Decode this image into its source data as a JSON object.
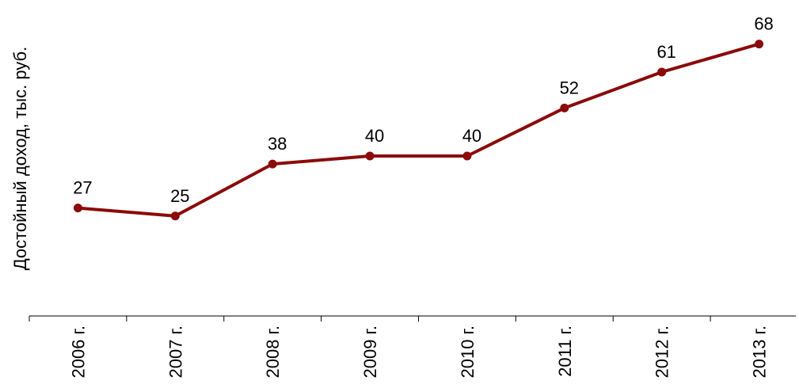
{
  "chart_data": {
    "type": "line",
    "title": "",
    "xlabel": "",
    "ylabel": "Достойный доход, тыс. руб.",
    "categories": [
      "2006 г.",
      "2007 г.",
      "2008 г.",
      "2009 г.",
      "2010 г.",
      "2011 г.",
      "2012 г.",
      "2013 г."
    ],
    "series": [
      {
        "values": [
          27,
          25,
          38,
          40,
          40,
          52,
          61,
          68
        ],
        "data_labels": [
          "27",
          "25",
          "38",
          "40",
          "40",
          "52",
          "61",
          "68"
        ]
      }
    ],
    "ylim": [
      0,
      75
    ],
    "grid": false,
    "legend": "none",
    "y_axis_visible": false
  },
  "colors": {
    "series_line": "#8B0A0A",
    "axis": "#000000",
    "background": "#ffffff"
  }
}
